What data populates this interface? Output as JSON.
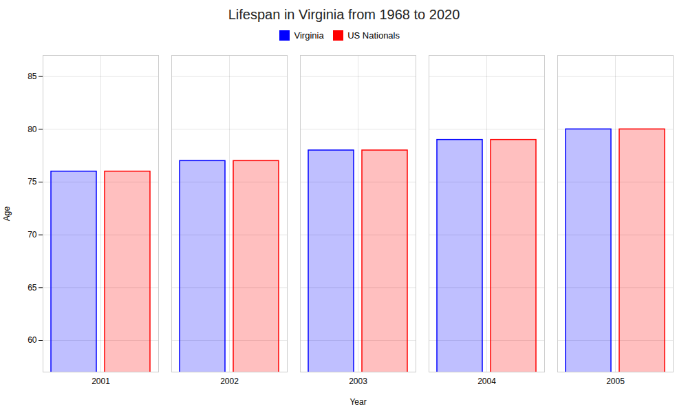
{
  "chart_data": {
    "type": "bar",
    "title": "Lifespan in Virginia from 1968 to 2020",
    "xlabel": "Year",
    "ylabel": "Age",
    "categories": [
      "2001",
      "2002",
      "2003",
      "2004",
      "2005"
    ],
    "series": [
      {
        "name": "Virginia",
        "color": "#0000ff",
        "values": [
          76.0,
          77.0,
          78.0,
          79.0,
          80.0
        ]
      },
      {
        "name": "US Nationals",
        "color": "#ff0000",
        "values": [
          76.0,
          77.0,
          78.0,
          79.0,
          80.0
        ]
      }
    ],
    "ylim": [
      57,
      87
    ],
    "yticks": [
      60,
      65,
      70,
      75,
      80,
      85
    ],
    "grid": true,
    "legend": "top"
  }
}
